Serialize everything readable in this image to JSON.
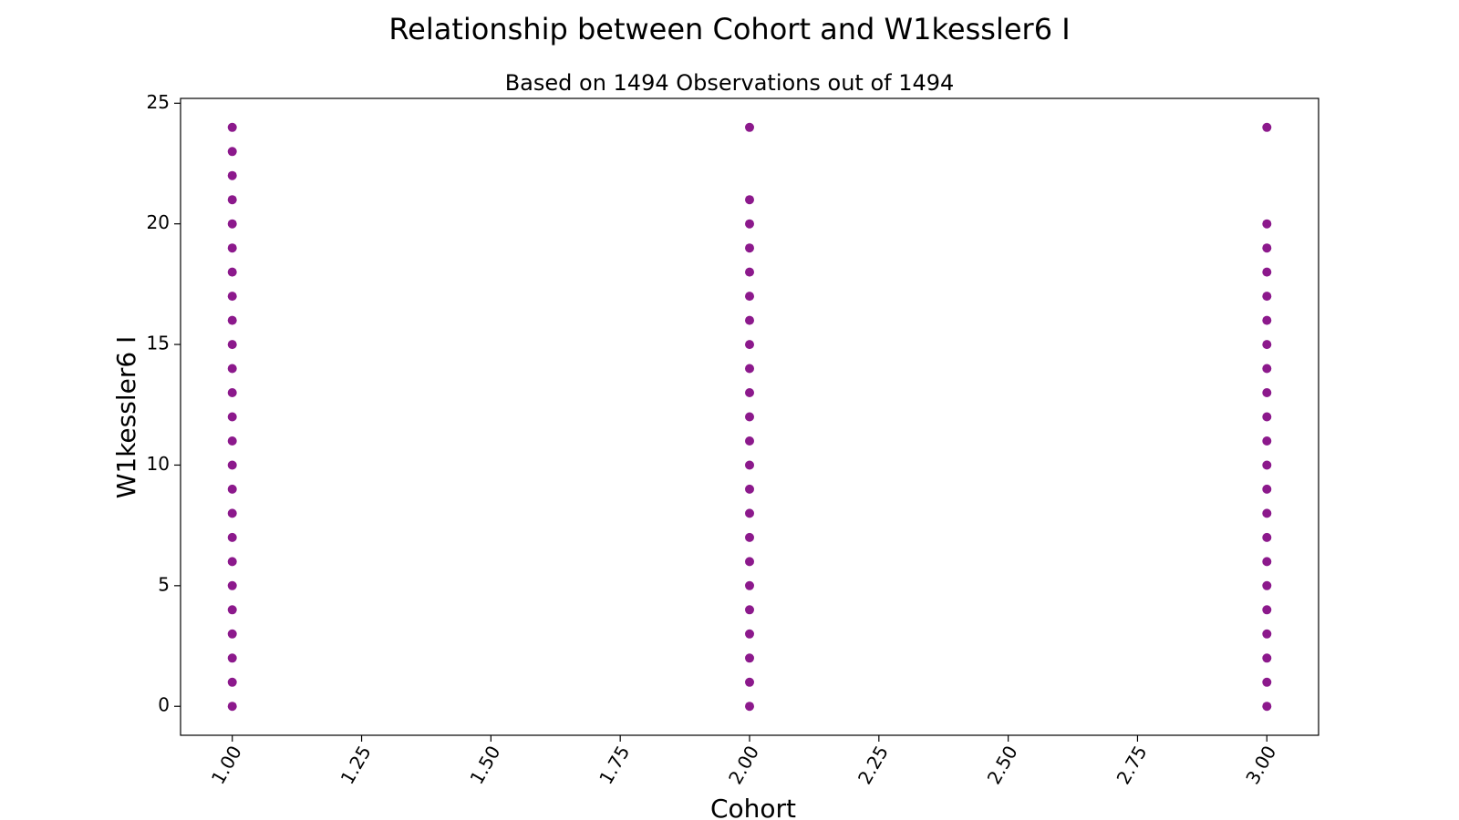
{
  "chart_data": {
    "type": "scatter",
    "title": "Relationship between Cohort and W1kessler6 I",
    "subtitle": "Based on 1494 Observations out of 1494",
    "xlabel": "Cohort",
    "ylabel": "W1kessler6 I",
    "xlim": [
      0.9,
      3.1
    ],
    "ylim": [
      -1.2,
      25.2
    ],
    "xticks": [
      1.0,
      1.25,
      1.5,
      1.75,
      2.0,
      2.25,
      2.5,
      2.75,
      3.0
    ],
    "xtick_labels": [
      "1.00",
      "1.25",
      "1.50",
      "1.75",
      "2.00",
      "2.25",
      "2.50",
      "2.75",
      "3.00"
    ],
    "yticks": [
      0,
      5,
      10,
      15,
      20,
      25
    ],
    "ytick_labels": [
      "0",
      "5",
      "10",
      "15",
      "20",
      "25"
    ],
    "xtick_rotation": 60,
    "marker_color": "#800080",
    "grid": false,
    "series": [
      {
        "points": [
          {
            "x": 1,
            "y": 0
          },
          {
            "x": 1,
            "y": 1
          },
          {
            "x": 1,
            "y": 2
          },
          {
            "x": 1,
            "y": 3
          },
          {
            "x": 1,
            "y": 4
          },
          {
            "x": 1,
            "y": 5
          },
          {
            "x": 1,
            "y": 6
          },
          {
            "x": 1,
            "y": 7
          },
          {
            "x": 1,
            "y": 8
          },
          {
            "x": 1,
            "y": 9
          },
          {
            "x": 1,
            "y": 10
          },
          {
            "x": 1,
            "y": 11
          },
          {
            "x": 1,
            "y": 12
          },
          {
            "x": 1,
            "y": 13
          },
          {
            "x": 1,
            "y": 14
          },
          {
            "x": 1,
            "y": 15
          },
          {
            "x": 1,
            "y": 16
          },
          {
            "x": 1,
            "y": 17
          },
          {
            "x": 1,
            "y": 18
          },
          {
            "x": 1,
            "y": 19
          },
          {
            "x": 1,
            "y": 20
          },
          {
            "x": 1,
            "y": 21
          },
          {
            "x": 1,
            "y": 22
          },
          {
            "x": 1,
            "y": 23
          },
          {
            "x": 1,
            "y": 24
          },
          {
            "x": 2,
            "y": 0
          },
          {
            "x": 2,
            "y": 1
          },
          {
            "x": 2,
            "y": 2
          },
          {
            "x": 2,
            "y": 3
          },
          {
            "x": 2,
            "y": 4
          },
          {
            "x": 2,
            "y": 5
          },
          {
            "x": 2,
            "y": 6
          },
          {
            "x": 2,
            "y": 7
          },
          {
            "x": 2,
            "y": 8
          },
          {
            "x": 2,
            "y": 9
          },
          {
            "x": 2,
            "y": 10
          },
          {
            "x": 2,
            "y": 11
          },
          {
            "x": 2,
            "y": 12
          },
          {
            "x": 2,
            "y": 13
          },
          {
            "x": 2,
            "y": 14
          },
          {
            "x": 2,
            "y": 15
          },
          {
            "x": 2,
            "y": 16
          },
          {
            "x": 2,
            "y": 17
          },
          {
            "x": 2,
            "y": 18
          },
          {
            "x": 2,
            "y": 19
          },
          {
            "x": 2,
            "y": 20
          },
          {
            "x": 2,
            "y": 21
          },
          {
            "x": 2,
            "y": 24
          },
          {
            "x": 3,
            "y": 0
          },
          {
            "x": 3,
            "y": 1
          },
          {
            "x": 3,
            "y": 2
          },
          {
            "x": 3,
            "y": 3
          },
          {
            "x": 3,
            "y": 4
          },
          {
            "x": 3,
            "y": 5
          },
          {
            "x": 3,
            "y": 6
          },
          {
            "x": 3,
            "y": 7
          },
          {
            "x": 3,
            "y": 8
          },
          {
            "x": 3,
            "y": 9
          },
          {
            "x": 3,
            "y": 10
          },
          {
            "x": 3,
            "y": 11
          },
          {
            "x": 3,
            "y": 12
          },
          {
            "x": 3,
            "y": 13
          },
          {
            "x": 3,
            "y": 14
          },
          {
            "x": 3,
            "y": 15
          },
          {
            "x": 3,
            "y": 16
          },
          {
            "x": 3,
            "y": 17
          },
          {
            "x": 3,
            "y": 18
          },
          {
            "x": 3,
            "y": 19
          },
          {
            "x": 3,
            "y": 20
          },
          {
            "x": 3,
            "y": 24
          }
        ]
      }
    ]
  }
}
